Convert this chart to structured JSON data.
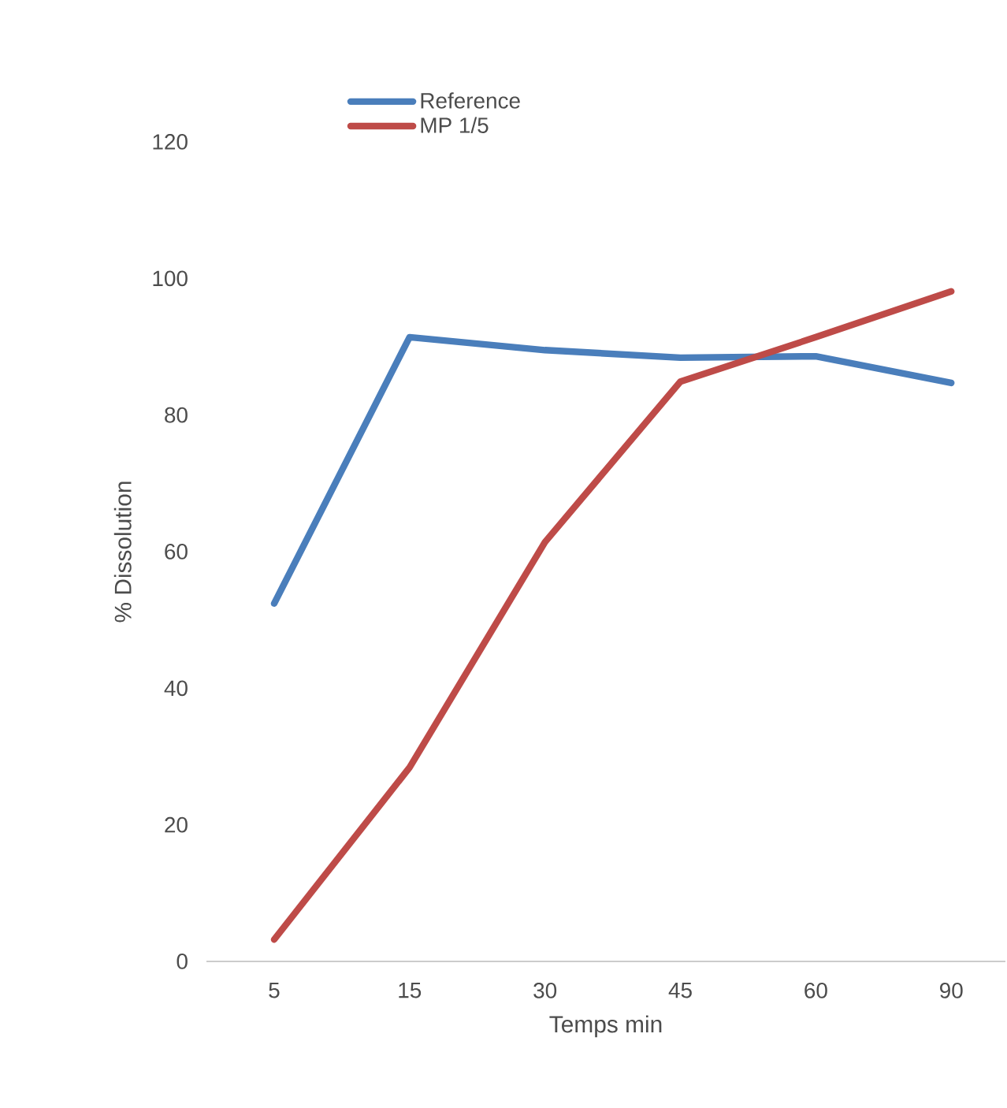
{
  "chart_data": {
    "type": "line",
    "xlabel": "Temps min",
    "ylabel": "% Dissolution",
    "categories": [
      "5",
      "15",
      "30",
      "45",
      "60",
      "90"
    ],
    "series": [
      {
        "name": "Reference",
        "color": "#4a7ebb",
        "values": [
          52.4,
          91.4,
          89.5,
          88.4,
          88.6,
          84.7
        ]
      },
      {
        "name": "MP 1/5",
        "color": "#be4b48",
        "values": [
          3.2,
          28.4,
          61.4,
          84.9,
          91.4,
          98.1
        ]
      }
    ],
    "ylim": [
      0,
      120
    ],
    "yticks": [
      0,
      20,
      40,
      60,
      80,
      100,
      120
    ],
    "legend": "top",
    "marker": "none",
    "line_style": "solid"
  }
}
